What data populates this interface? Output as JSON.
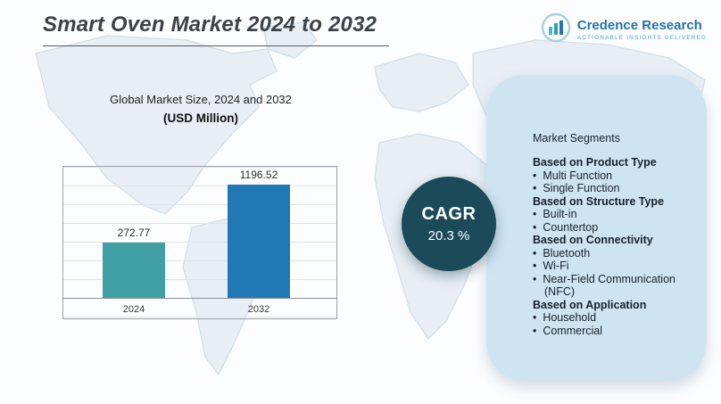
{
  "header": {
    "title": "Smart Oven Market 2024 to 2032",
    "logo": {
      "brand": "Credence Research",
      "tagline": "Actionable Insights Delivered"
    }
  },
  "chart_data": {
    "type": "bar",
    "title": "Global Market Size, 2024 and 2032",
    "subtitle": "(USD Million)",
    "categories": [
      "2024",
      "2032"
    ],
    "values": [
      272.77,
      1196.52
    ],
    "xlabel": "",
    "ylabel": "USD Million",
    "ylim": [
      0,
      1400
    ],
    "grid": true,
    "legend": "none",
    "bar_colors": [
      "#3f9fa3",
      "#2178b4"
    ]
  },
  "cagr": {
    "label": "CAGR",
    "value": "20.3 %"
  },
  "segments": {
    "heading": "Market Segments",
    "groups": [
      {
        "title": "Based on Product Type",
        "items": [
          "Multi Function",
          "Single Function"
        ]
      },
      {
        "title": "Based on Structure Type",
        "items": [
          "Built-in",
          "Countertop"
        ]
      },
      {
        "title": "Based on Connectivity",
        "items": [
          "Bluetooth",
          "Wi-Fi",
          "Near-Field Communication (NFC)"
        ]
      },
      {
        "title": "Based on Application",
        "items": [
          "Household",
          "Commercial"
        ]
      }
    ]
  },
  "colors": {
    "cagr_circle": "#1b4a59",
    "panel_bg": "#cfe4f2",
    "bar_2024": "#3f9fa3",
    "bar_2032": "#2178b4"
  }
}
